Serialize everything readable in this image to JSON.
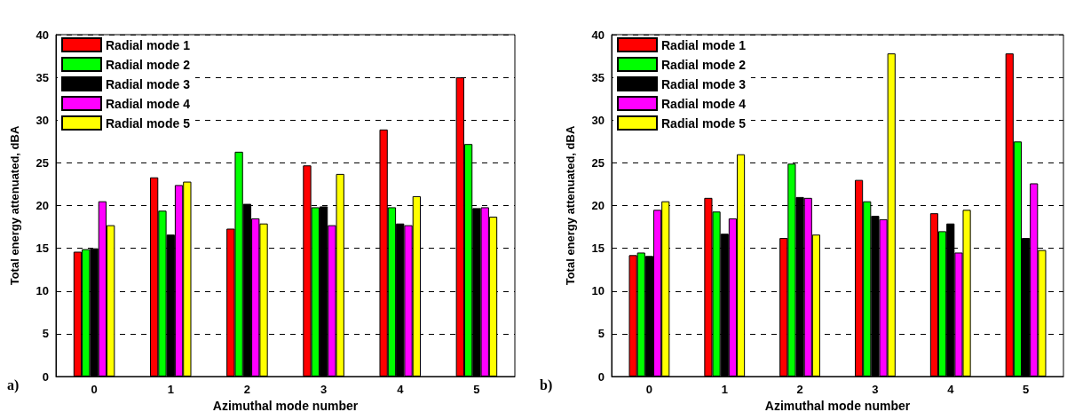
{
  "chart_data": [
    {
      "type": "bar",
      "xlabel": "Azimuthal mode number",
      "ylabel": "Total energy attenuated, dBA",
      "categories": [
        "0",
        "1",
        "2",
        "3",
        "4",
        "5"
      ],
      "ylim": [
        0,
        40
      ],
      "yticks": [
        0,
        5,
        10,
        15,
        20,
        25,
        30,
        35,
        40
      ],
      "grid": "y",
      "legend": "top left",
      "annotations": [
        "a)"
      ],
      "series": [
        {
          "name": "Radial mode 1",
          "color": "#ff0000",
          "values": [
            14.6,
            23.3,
            17.3,
            24.7,
            28.9,
            35.0
          ]
        },
        {
          "name": "Radial mode 2",
          "color": "#00ff00",
          "values": [
            14.9,
            19.4,
            26.3,
            19.8,
            19.8,
            27.2
          ]
        },
        {
          "name": "Radial mode 3",
          "color": "#000000",
          "values": [
            15.0,
            16.6,
            20.2,
            19.9,
            17.9,
            19.7
          ]
        },
        {
          "name": "Radial mode 4",
          "color": "#ff00ff",
          "values": [
            20.5,
            22.4,
            18.5,
            17.7,
            17.7,
            19.8
          ]
        },
        {
          "name": "Radial mode 5",
          "color": "#ffff00",
          "values": [
            17.7,
            22.8,
            17.9,
            23.7,
            21.1,
            18.7
          ]
        }
      ]
    },
    {
      "type": "bar",
      "xlabel": "Azimuthal mode number",
      "ylabel": "Total energy attenuated, dBA",
      "categories": [
        "0",
        "1",
        "2",
        "3",
        "4",
        "5"
      ],
      "ylim": [
        0,
        40
      ],
      "yticks": [
        0,
        5,
        10,
        15,
        20,
        25,
        30,
        35,
        40
      ],
      "grid": "y",
      "legend": "top left",
      "annotations": [
        "b)"
      ],
      "series": [
        {
          "name": "Radial mode 1",
          "color": "#ff0000",
          "values": [
            14.2,
            20.9,
            16.2,
            23.0,
            19.1,
            37.8
          ]
        },
        {
          "name": "Radial mode 2",
          "color": "#00ff00",
          "values": [
            14.5,
            19.3,
            24.9,
            20.5,
            17.0,
            27.5
          ]
        },
        {
          "name": "Radial mode 3",
          "color": "#000000",
          "values": [
            14.1,
            16.7,
            21.0,
            18.8,
            17.9,
            16.2
          ]
        },
        {
          "name": "Radial mode 4",
          "color": "#ff00ff",
          "values": [
            19.5,
            18.5,
            20.9,
            18.4,
            14.5,
            22.6
          ]
        },
        {
          "name": "Radial mode 5",
          "color": "#ffff00",
          "values": [
            20.5,
            26.0,
            16.6,
            37.8,
            19.5,
            14.8
          ]
        }
      ]
    }
  ]
}
